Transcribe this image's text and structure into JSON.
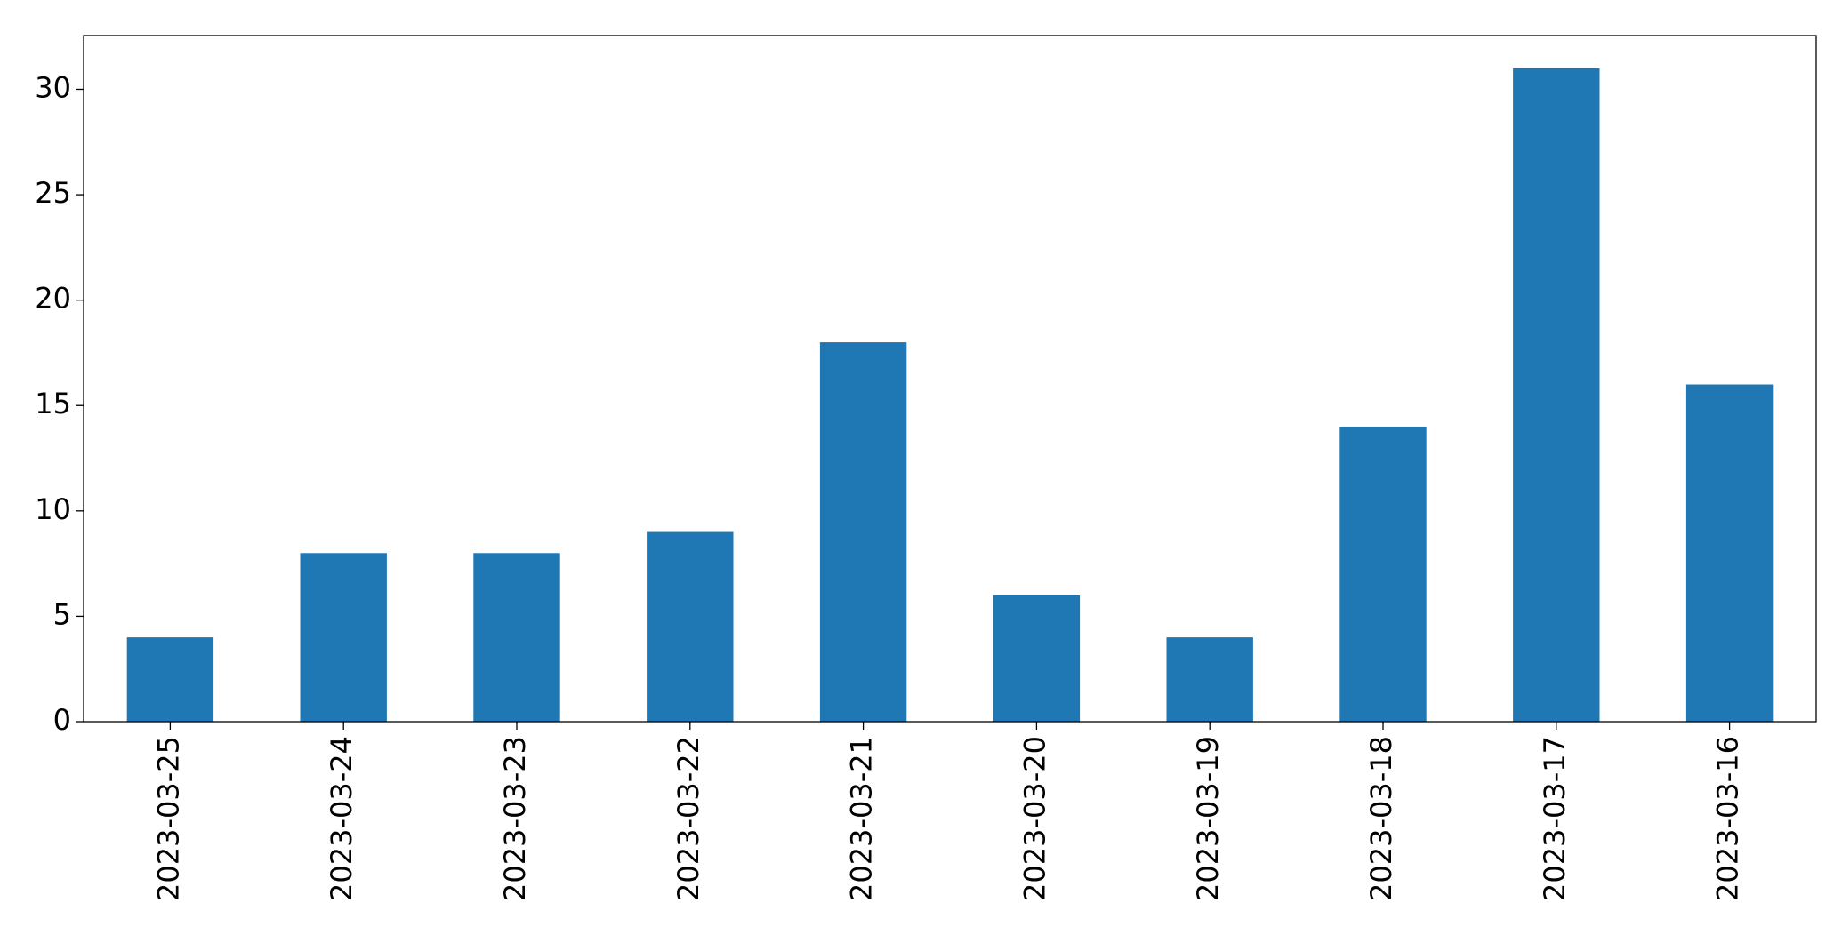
{
  "chart_data": {
    "type": "bar",
    "categories": [
      "2023-03-25",
      "2023-03-24",
      "2023-03-23",
      "2023-03-22",
      "2023-03-21",
      "2023-03-20",
      "2023-03-19",
      "2023-03-18",
      "2023-03-17",
      "2023-03-16"
    ],
    "values": [
      4,
      8,
      8,
      9,
      18,
      6,
      4,
      14,
      31,
      16
    ],
    "color": "#1f77b4",
    "ylim": [
      0,
      32.55
    ],
    "yticks": [
      0,
      5,
      10,
      15,
      20,
      25,
      30
    ],
    "grid": false
  }
}
